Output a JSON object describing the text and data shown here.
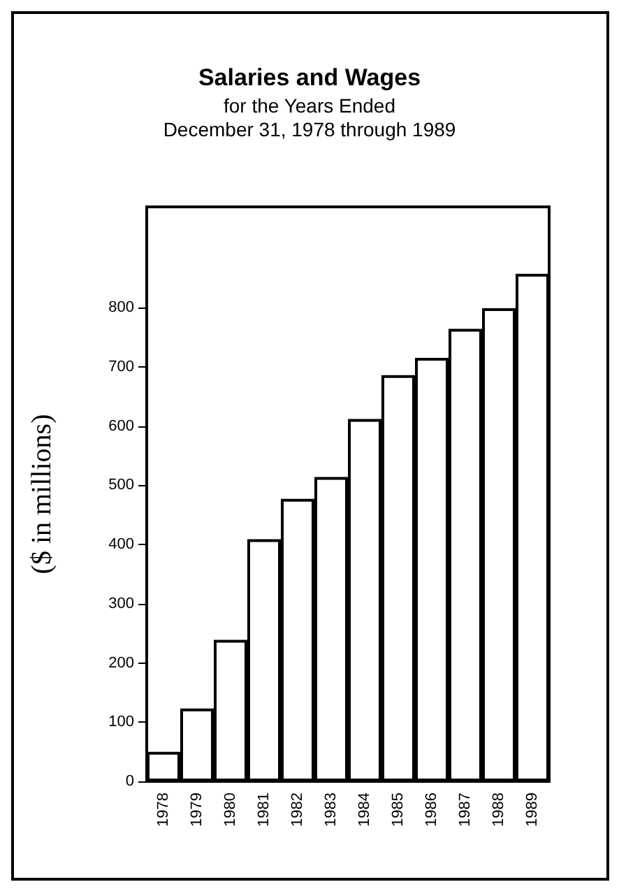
{
  "chart_data": {
    "type": "bar",
    "title": "Salaries and Wages",
    "subtitle": "for the Years Ended\nDecember 31, 1978 through 1989",
    "ylabel": "($ in millions)",
    "categories": [
      "1978",
      "1979",
      "1980",
      "1981",
      "1982",
      "1983",
      "1984",
      "1985",
      "1986",
      "1987",
      "1988",
      "1989"
    ],
    "values": [
      50,
      123,
      239,
      409,
      477,
      514,
      612,
      686,
      715,
      764,
      799,
      857
    ],
    "color": "#ffffff",
    "ylim": [
      0,
      970
    ],
    "yticks": [
      0,
      100,
      200,
      300,
      400,
      500,
      600,
      700,
      800
    ],
    "grid": false
  }
}
